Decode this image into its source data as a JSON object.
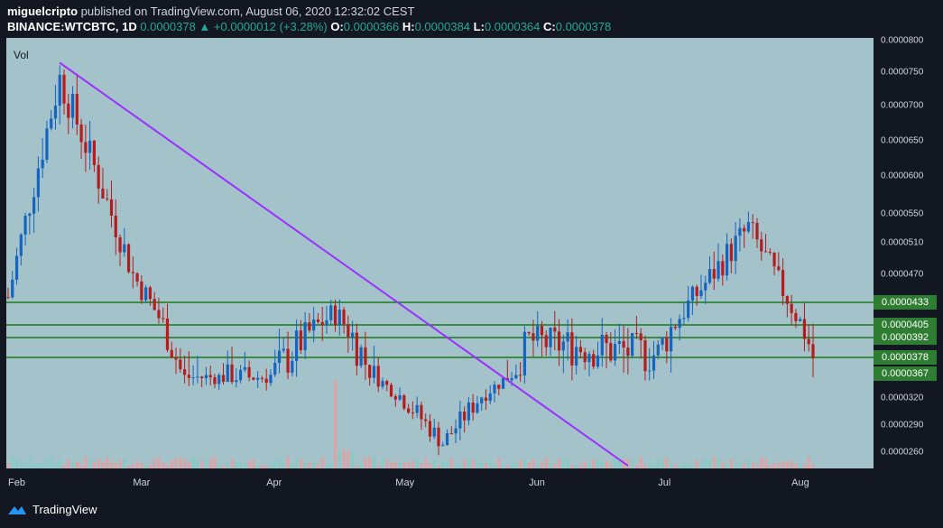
{
  "header": {
    "author": "miguelcripto",
    "published_text": " published on TradingView.com, August 06, 2020 12:32:02 CEST",
    "symbol": "BINANCE:WTCBTC, 1D",
    "last": "0.0000378",
    "change": "+0.0000012 (+3.28%)",
    "o_label": "O:",
    "o": "0.0000366",
    "h_label": "H:",
    "h": "0.0000384",
    "l_label": "L:",
    "l": "0.0000364",
    "c_label": "C:",
    "c": "0.0000378"
  },
  "vol_label": "Vol",
  "footer_brand": "TradingView",
  "colors": {
    "up": "#1565c0",
    "down": "#b71c1c",
    "trend": "#9b30ff",
    "level": "#1b7a1b",
    "badge": "#2e7d32"
  },
  "chart_data": {
    "type": "candlestick",
    "title": "BINANCE:WTCBTC, 1D",
    "y_ticks": [
      "0.0000800",
      "0.0000750",
      "0.0000700",
      "0.0000650",
      "0.0000600",
      "0.0000550",
      "0.0000510",
      "0.0000470",
      "0.0000433",
      "0.0000405",
      "0.0000392",
      "0.0000378",
      "0.0000367",
      "0.0000320",
      "0.0000290",
      "0.0000260"
    ],
    "x_ticks": [
      "Feb",
      "Mar",
      "Apr",
      "May",
      "Jun",
      "Jul",
      "Aug"
    ],
    "horizontal_levels": [
      {
        "label": "0.0000433",
        "value": 4.33e-05
      },
      {
        "label": "0.0000405",
        "value": 4.05e-05
      },
      {
        "label": "0.0000392",
        "value": 3.92e-05
      },
      {
        "label": "0.0000378",
        "value": 3.78e-05
      }
    ],
    "price_badges": [
      "0.0000433",
      "0.0000405",
      "0.0000392",
      "0.0000378",
      "0.0000367"
    ],
    "trendline": {
      "from": {
        "date": "Feb 13",
        "price": 7.65e-05
      },
      "to": {
        "date": "Jun 24",
        "price": 2.45e-05
      }
    },
    "key_points": [
      {
        "date": "Feb 1",
        "close": 4.4e-05
      },
      {
        "date": "Feb 13",
        "close": 7.4e-05
      },
      {
        "date": "Mar 1",
        "close": 4.7e-05
      },
      {
        "date": "Mar 13",
        "close": 3.6e-05
      },
      {
        "date": "Apr 1",
        "close": 3.6e-05
      },
      {
        "date": "Apr 17",
        "close": 4.2e-05
      },
      {
        "date": "May 1",
        "close": 3.3e-05
      },
      {
        "date": "May 12",
        "close": 2.7e-05
      },
      {
        "date": "Jun 1",
        "close": 3.9e-05
      },
      {
        "date": "Jul 1",
        "close": 3.8e-05
      },
      {
        "date": "Jul 22",
        "close": 5.3e-05
      },
      {
        "date": "Aug 6",
        "close": 3.78e-05
      }
    ]
  }
}
